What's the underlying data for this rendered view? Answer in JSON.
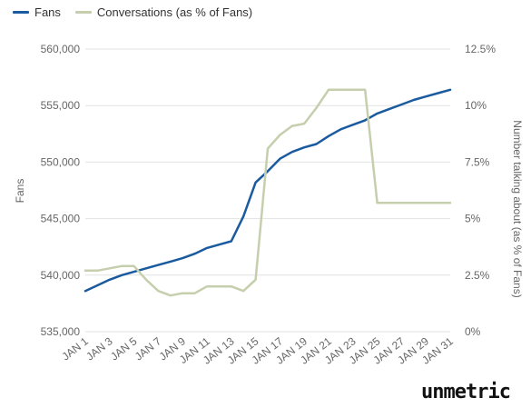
{
  "legend": {
    "fans_label": "Fans",
    "conv_label": "Conversations (as % of Fans)"
  },
  "brand": "unmetric",
  "colors": {
    "fans": "#1a5a9e",
    "conversations": "#c5cfad",
    "grid": "#e2e2e2",
    "text": "#666666"
  },
  "chart_data": {
    "type": "line",
    "title": "",
    "xlabel": "",
    "ylabel": "Fans",
    "y2label": "Number talking about (as % of Fans)",
    "ylim": [
      535000,
      560000
    ],
    "y2lim": [
      0,
      12.5
    ],
    "yticks": [
      "535,000",
      "540,000",
      "545,000",
      "550,000",
      "555,000",
      "560,000"
    ],
    "y2ticks": [
      "0%",
      "2.5%",
      "5%",
      "7.5%",
      "10%",
      "12.5%"
    ],
    "xticklabels": [
      "JAN 1",
      "JAN 3",
      "JAN 5",
      "JAN 7",
      "JAN 9",
      "JAN 11",
      "JAN 13",
      "JAN 15",
      "JAN 17",
      "JAN 19",
      "JAN 21",
      "JAN 23",
      "JAN 25",
      "JAN 27",
      "JAN 29",
      "JAN 31"
    ],
    "x": [
      1,
      2,
      3,
      4,
      5,
      6,
      7,
      8,
      9,
      10,
      11,
      12,
      13,
      14,
      15,
      16,
      17,
      18,
      19,
      20,
      21,
      22,
      23,
      24,
      25,
      26,
      27,
      28,
      29,
      30,
      31
    ],
    "series": [
      {
        "name": "Fans",
        "axis": "left",
        "values": [
          538600,
          539100,
          539600,
          540000,
          540300,
          540600,
          540900,
          541200,
          541500,
          541900,
          542400,
          542700,
          543000,
          545200,
          548200,
          549200,
          550300,
          550900,
          551300,
          551600,
          552300,
          552900,
          553300,
          553700,
          554300,
          554700,
          555100,
          555500,
          555800,
          556100,
          556400
        ]
      },
      {
        "name": "Conversations (as % of Fans)",
        "axis": "right",
        "values": [
          2.7,
          2.7,
          2.8,
          2.9,
          2.9,
          2.3,
          1.8,
          1.6,
          1.7,
          1.7,
          2.0,
          2.0,
          2.0,
          1.8,
          2.3,
          8.1,
          8.7,
          9.1,
          9.2,
          9.9,
          10.7,
          10.7,
          10.7,
          10.7,
          5.7,
          5.7,
          5.7,
          5.7,
          5.7,
          5.7,
          5.7
        ]
      }
    ],
    "legend_position": "top-left",
    "grid": true
  }
}
